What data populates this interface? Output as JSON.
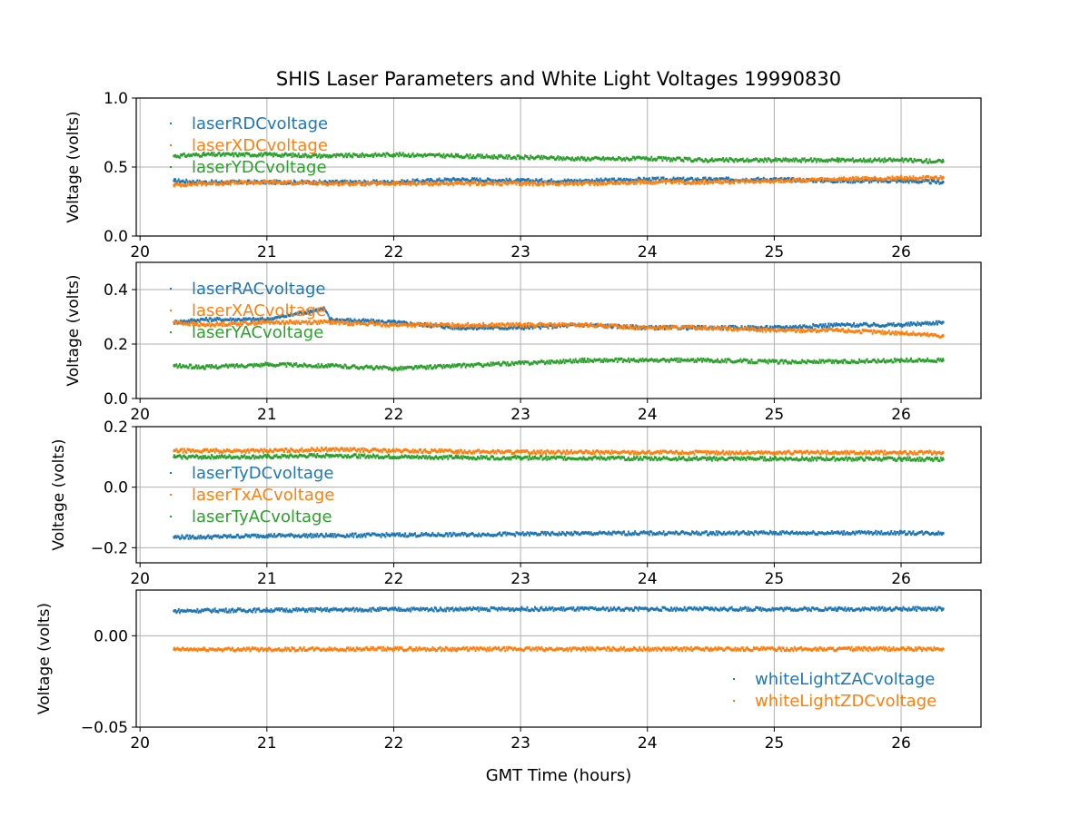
{
  "figure": {
    "title": "SHIS Laser Parameters and White Light Voltages 19990830",
    "xlabel": "GMT Time (hours)"
  },
  "colors": {
    "blue": "#1f77b4",
    "orange": "#ff7f0e",
    "green": "#2ca02c",
    "grid": "#b0b0b0",
    "axis": "#000000"
  },
  "chart_data": [
    {
      "type": "scatter",
      "title": "SHIS Laser Parameters and White Light Voltages 19990830",
      "xlabel": "",
      "ylabel": "Voltage (volts)",
      "xlim": [
        19.97,
        26.63
      ],
      "ylim": [
        0.0,
        1.0
      ],
      "xticks": [
        20,
        21,
        22,
        23,
        24,
        25,
        26
      ],
      "xtick_labels": [
        "20",
        "21",
        "22",
        "23",
        "24",
        "25",
        "26"
      ],
      "yticks": [
        0.0,
        0.5,
        1.0
      ],
      "ytick_labels": [
        "0.0",
        "0.5",
        "1.0"
      ],
      "grid": true,
      "legend": "upper-left",
      "series": [
        {
          "name": "laserRDCvoltage",
          "color": "#1f77b4",
          "x": [
            20.27,
            20.5,
            21.0,
            21.5,
            22.0,
            22.5,
            23.0,
            23.5,
            24.0,
            24.5,
            25.0,
            25.5,
            26.0,
            26.33
          ],
          "y": [
            0.4,
            0.39,
            0.39,
            0.39,
            0.39,
            0.41,
            0.4,
            0.4,
            0.41,
            0.41,
            0.41,
            0.4,
            0.4,
            0.39
          ]
        },
        {
          "name": "laserXDCvoltage",
          "color": "#ff7f0e",
          "x": [
            20.27,
            20.5,
            21.0,
            21.5,
            22.0,
            22.5,
            23.0,
            23.5,
            24.0,
            24.5,
            25.0,
            25.5,
            26.0,
            26.33
          ],
          "y": [
            0.37,
            0.38,
            0.39,
            0.38,
            0.38,
            0.38,
            0.38,
            0.38,
            0.39,
            0.39,
            0.4,
            0.41,
            0.42,
            0.42
          ]
        },
        {
          "name": "laserYDCvoltage",
          "color": "#2ca02c",
          "x": [
            20.27,
            20.5,
            21.0,
            21.5,
            22.0,
            22.5,
            23.0,
            23.5,
            24.0,
            24.5,
            25.0,
            25.5,
            26.0,
            26.33
          ],
          "y": [
            0.58,
            0.59,
            0.59,
            0.58,
            0.59,
            0.58,
            0.57,
            0.56,
            0.56,
            0.55,
            0.55,
            0.55,
            0.55,
            0.54
          ]
        }
      ]
    },
    {
      "type": "scatter",
      "xlabel": "",
      "ylabel": "Voltage (volts)",
      "xlim": [
        19.97,
        26.63
      ],
      "ylim": [
        0.0,
        0.5
      ],
      "xticks": [
        20,
        21,
        22,
        23,
        24,
        25,
        26
      ],
      "xtick_labels": [
        "20",
        "21",
        "22",
        "23",
        "24",
        "25",
        "26"
      ],
      "yticks": [
        0.0,
        0.2,
        0.4
      ],
      "ytick_labels": [
        "0.0",
        "0.2",
        "0.4"
      ],
      "grid": true,
      "legend": "upper-left",
      "series": [
        {
          "name": "laserRACvoltage",
          "color": "#1f77b4",
          "x": [
            20.27,
            20.5,
            21.0,
            21.45,
            21.5,
            22.0,
            22.5,
            23.0,
            23.5,
            24.0,
            24.5,
            25.0,
            25.5,
            26.0,
            26.33
          ],
          "y": [
            0.28,
            0.29,
            0.29,
            0.33,
            0.29,
            0.28,
            0.26,
            0.26,
            0.27,
            0.26,
            0.26,
            0.26,
            0.27,
            0.27,
            0.28
          ]
        },
        {
          "name": "laserXACvoltage",
          "color": "#ff7f0e",
          "x": [
            20.27,
            20.5,
            21.0,
            21.5,
            22.0,
            22.5,
            23.0,
            23.5,
            24.0,
            24.5,
            25.0,
            25.5,
            26.0,
            26.33
          ],
          "y": [
            0.28,
            0.27,
            0.28,
            0.28,
            0.27,
            0.27,
            0.27,
            0.27,
            0.26,
            0.26,
            0.25,
            0.25,
            0.24,
            0.23
          ]
        },
        {
          "name": "laserYACvoltage",
          "color": "#2ca02c",
          "x": [
            20.27,
            20.5,
            21.0,
            21.5,
            22.0,
            22.5,
            23.0,
            23.5,
            24.0,
            24.5,
            25.0,
            25.5,
            26.0,
            26.33
          ],
          "y": [
            0.12,
            0.115,
            0.125,
            0.12,
            0.11,
            0.12,
            0.13,
            0.14,
            0.14,
            0.14,
            0.135,
            0.135,
            0.14,
            0.14
          ]
        }
      ]
    },
    {
      "type": "scatter",
      "xlabel": "",
      "ylabel": "Voltage (volts)",
      "xlim": [
        19.97,
        26.63
      ],
      "ylim": [
        -0.25,
        0.2
      ],
      "xticks": [
        20,
        21,
        22,
        23,
        24,
        25,
        26
      ],
      "xtick_labels": [
        "20",
        "21",
        "22",
        "23",
        "24",
        "25",
        "26"
      ],
      "yticks": [
        -0.2,
        0.0,
        0.2
      ],
      "ytick_labels": [
        "−0.2",
        "0.0",
        "0.2"
      ],
      "grid": true,
      "legend": "center-left",
      "series": [
        {
          "name": "laserTyDCvoltage",
          "color": "#1f77b4",
          "x": [
            20.27,
            20.5,
            21.0,
            21.5,
            22.0,
            22.5,
            23.0,
            23.5,
            24.0,
            24.5,
            25.0,
            25.5,
            26.0,
            26.33
          ],
          "y": [
            -0.165,
            -0.165,
            -0.16,
            -0.16,
            -0.158,
            -0.157,
            -0.155,
            -0.153,
            -0.152,
            -0.152,
            -0.151,
            -0.151,
            -0.151,
            -0.152
          ]
        },
        {
          "name": "laserTxACvoltage",
          "color": "#ff7f0e",
          "x": [
            20.27,
            20.5,
            21.0,
            21.5,
            22.0,
            22.5,
            23.0,
            23.5,
            24.0,
            24.5,
            25.0,
            25.5,
            26.0,
            26.33
          ],
          "y": [
            0.12,
            0.12,
            0.12,
            0.125,
            0.12,
            0.118,
            0.116,
            0.115,
            0.115,
            0.114,
            0.114,
            0.114,
            0.114,
            0.114
          ]
        },
        {
          "name": "laserTyACvoltage",
          "color": "#2ca02c",
          "x": [
            20.27,
            20.5,
            21.0,
            21.5,
            22.0,
            22.5,
            23.0,
            23.5,
            24.0,
            24.5,
            25.0,
            25.5,
            26.0,
            26.33
          ],
          "y": [
            0.1,
            0.1,
            0.1,
            0.105,
            0.1,
            0.098,
            0.097,
            0.096,
            0.095,
            0.094,
            0.094,
            0.093,
            0.093,
            0.092
          ]
        }
      ]
    },
    {
      "type": "scatter",
      "xlabel": "GMT Time (hours)",
      "ylabel": "Voltage (volts)",
      "xlim": [
        19.97,
        26.63
      ],
      "ylim": [
        -0.05,
        0.025
      ],
      "xticks": [
        20,
        21,
        22,
        23,
        24,
        25,
        26
      ],
      "xtick_labels": [
        "20",
        "21",
        "22",
        "23",
        "24",
        "25",
        "26"
      ],
      "yticks": [
        -0.05,
        0.0
      ],
      "ytick_labels": [
        "−0.05",
        "0.00"
      ],
      "grid": true,
      "legend": "lower-right",
      "series": [
        {
          "name": "whiteLightZACvoltage",
          "color": "#1f77b4",
          "x": [
            20.27,
            20.5,
            21.0,
            21.5,
            22.0,
            22.5,
            23.0,
            23.5,
            24.0,
            24.5,
            25.0,
            25.5,
            26.0,
            26.33
          ],
          "y": [
            0.0135,
            0.0138,
            0.014,
            0.0142,
            0.0144,
            0.0145,
            0.0146,
            0.0146,
            0.0146,
            0.0146,
            0.0146,
            0.0146,
            0.0147,
            0.0147
          ]
        },
        {
          "name": "whiteLightZDCvoltage",
          "color": "#ff7f0e",
          "x": [
            20.27,
            20.5,
            21.0,
            21.5,
            22.0,
            22.5,
            23.0,
            23.5,
            24.0,
            24.5,
            25.0,
            25.5,
            26.0,
            26.33
          ],
          "y": [
            -0.0075,
            -0.0075,
            -0.0074,
            -0.0074,
            -0.0073,
            -0.0073,
            -0.0073,
            -0.0073,
            -0.0073,
            -0.0073,
            -0.0073,
            -0.0073,
            -0.0073,
            -0.0073
          ]
        }
      ]
    }
  ]
}
